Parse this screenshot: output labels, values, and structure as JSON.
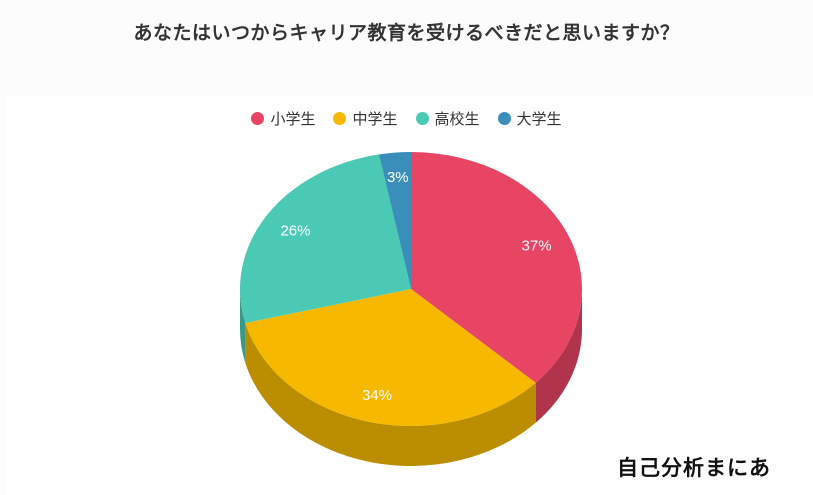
{
  "title": "あなたはいつからキャリア教育を受けるべきだと思いますか？",
  "brand": "自己分析まにあ",
  "legend": [
    {
      "label": "小学生",
      "color": "#e84464"
    },
    {
      "label": "中学生",
      "color": "#f6b900"
    },
    {
      "label": "高校生",
      "color": "#4ac9b4"
    },
    {
      "label": "大学生",
      "color": "#3a8fba"
    }
  ],
  "chart_data": {
    "type": "pie",
    "title": "あなたはいつからキャリア教育を受けるべきだと思いますか？",
    "categories": [
      "小学生",
      "中学生",
      "高校生",
      "大学生"
    ],
    "values": [
      37,
      34,
      26,
      3
    ],
    "labels": [
      "37%",
      "34%",
      "26%",
      "3%"
    ],
    "colors": [
      "#e84464",
      "#f6b900",
      "#4ac9b4",
      "#3a8fba"
    ],
    "style": "3d",
    "legend_position": "top"
  }
}
